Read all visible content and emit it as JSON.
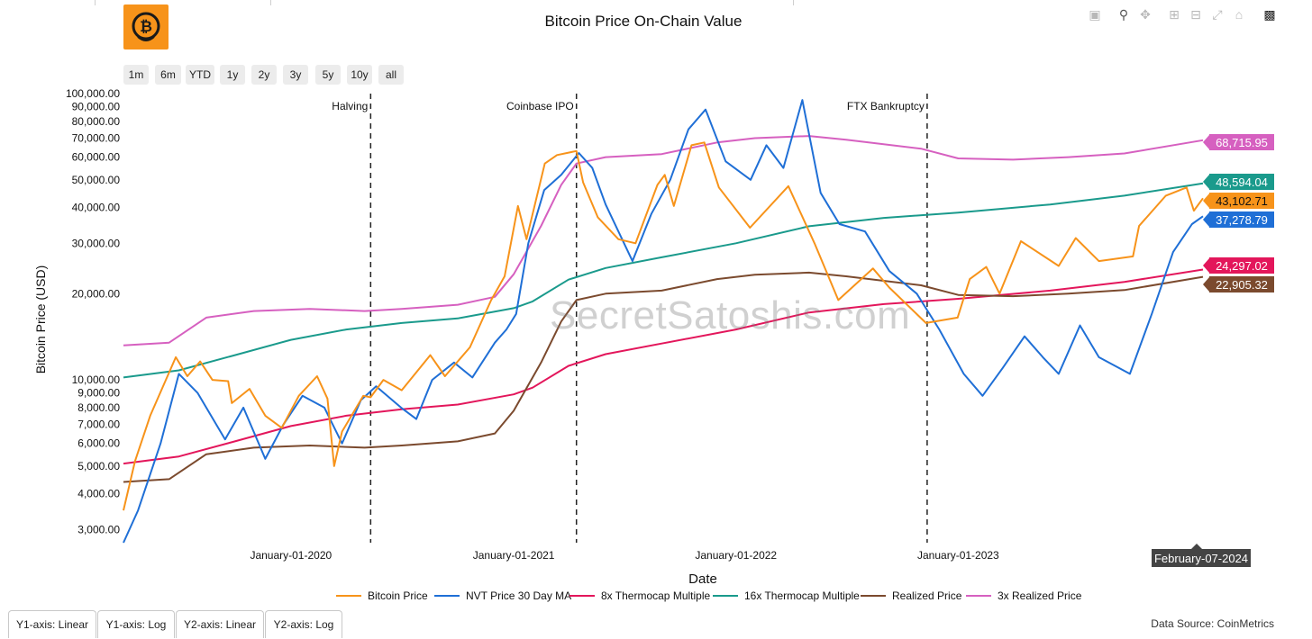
{
  "toolbar": {
    "range_buttons": [
      "1m",
      "6m",
      "YTD",
      "1y",
      "2y",
      "3y",
      "5y",
      "10y",
      "all"
    ],
    "modebar_icons": [
      "camera-icon",
      "zoom-icon",
      "pan-icon",
      "zoom-in-icon",
      "zoom-out-icon",
      "autoscale-icon",
      "home-icon",
      "plotly-logo-icon"
    ]
  },
  "bottom_buttons": [
    "Y1-axis: Linear",
    "Y1-axis: Log",
    "Y2-axis: Linear",
    "Y2-axis: Log"
  ],
  "watermark": "SecretSatoshis.com",
  "data_source": "Data Source: CoinMetrics",
  "logo_icon": "bitcoin-logo-icon",
  "hover_label": "February-07-2024",
  "chart_data": {
    "type": "line",
    "title": "Bitcoin Price On-Chain Value",
    "xlabel": "Date",
    "ylabel": "Bitcoin Price (USD)",
    "y_scale": "log",
    "x_range": [
      "2019-04-01",
      "2024-02-07"
    ],
    "ylim": [
      2700,
      100000
    ],
    "y_ticks": [
      {
        "value": 3000,
        "label": "3,000.00"
      },
      {
        "value": 4000,
        "label": "4,000.00"
      },
      {
        "value": 5000,
        "label": "5,000.00"
      },
      {
        "value": 6000,
        "label": "6,000.00"
      },
      {
        "value": 7000,
        "label": "7,000.00"
      },
      {
        "value": 8000,
        "label": "8,000.00"
      },
      {
        "value": 9000,
        "label": "9,000.00"
      },
      {
        "value": 10000,
        "label": "10,000.00"
      },
      {
        "value": 20000,
        "label": "20,000.00"
      },
      {
        "value": 30000,
        "label": "30,000.00"
      },
      {
        "value": 40000,
        "label": "40,000.00"
      },
      {
        "value": 50000,
        "label": "50,000.00"
      },
      {
        "value": 60000,
        "label": "60,000.00"
      },
      {
        "value": 70000,
        "label": "70,000.00"
      },
      {
        "value": 80000,
        "label": "80,000.00"
      },
      {
        "value": 90000,
        "label": "90,000.00"
      },
      {
        "value": 100000,
        "label": "100,000.00"
      }
    ],
    "x_ticks": [
      {
        "date": "2020-01-01",
        "label": "January-01-2020"
      },
      {
        "date": "2021-01-01",
        "label": "January-01-2021"
      },
      {
        "date": "2022-01-01",
        "label": "January-01-2022"
      },
      {
        "date": "2023-01-01",
        "label": "January-01-2023"
      },
      {
        "date": "2024-01-01",
        "label": "Ja"
      }
    ],
    "events": [
      {
        "date": "2020-05-11",
        "label": "Halving"
      },
      {
        "date": "2021-04-14",
        "label": "Coinbase IPO"
      },
      {
        "date": "2022-11-11",
        "label": "FTX Bankruptcy"
      }
    ],
    "legend_position": "bottom",
    "grid": false,
    "series": [
      {
        "name": "Bitcoin Price",
        "color": "#f7931a",
        "last_label": "43,102.71",
        "points": [
          [
            "2019-04-01",
            3500
          ],
          [
            "2019-04-20",
            5200
          ],
          [
            "2019-05-15",
            7500
          ],
          [
            "2019-06-26",
            12000
          ],
          [
            "2019-07-15",
            10300
          ],
          [
            "2019-08-05",
            11600
          ],
          [
            "2019-08-25",
            10000
          ],
          [
            "2019-09-20",
            9900
          ],
          [
            "2019-09-26",
            8300
          ],
          [
            "2019-10-25",
            9300
          ],
          [
            "2019-11-20",
            7500
          ],
          [
            "2019-12-17",
            6800
          ],
          [
            "2020-01-14",
            8800
          ],
          [
            "2020-02-13",
            10300
          ],
          [
            "2020-03-01",
            8600
          ],
          [
            "2020-03-12",
            5000
          ],
          [
            "2020-03-25",
            6600
          ],
          [
            "2020-04-29",
            8800
          ],
          [
            "2020-05-11",
            8700
          ],
          [
            "2020-06-01",
            10000
          ],
          [
            "2020-07-01",
            9200
          ],
          [
            "2020-08-17",
            12200
          ],
          [
            "2020-09-10",
            10300
          ],
          [
            "2020-10-21",
            13000
          ],
          [
            "2020-11-25",
            19000
          ],
          [
            "2020-12-17",
            23000
          ],
          [
            "2021-01-08",
            40500
          ],
          [
            "2021-01-22",
            31000
          ],
          [
            "2021-02-21",
            57000
          ],
          [
            "2021-03-13",
            61000
          ],
          [
            "2021-04-14",
            63000
          ],
          [
            "2021-04-25",
            49000
          ],
          [
            "2021-05-19",
            37000
          ],
          [
            "2021-06-22",
            31000
          ],
          [
            "2021-07-20",
            30000
          ],
          [
            "2021-08-25",
            48000
          ],
          [
            "2021-09-06",
            52000
          ],
          [
            "2021-09-21",
            40500
          ],
          [
            "2021-10-20",
            66000
          ],
          [
            "2021-11-10",
            67500
          ],
          [
            "2021-12-04",
            47000
          ],
          [
            "2022-01-24",
            34000
          ],
          [
            "2022-03-28",
            47500
          ],
          [
            "2022-05-10",
            30000
          ],
          [
            "2022-06-18",
            19000
          ],
          [
            "2022-08-14",
            24500
          ],
          [
            "2022-09-10",
            21000
          ],
          [
            "2022-11-09",
            15800
          ],
          [
            "2022-12-31",
            16500
          ],
          [
            "2023-01-20",
            22500
          ],
          [
            "2023-02-16",
            24800
          ],
          [
            "2023-03-10",
            20000
          ],
          [
            "2023-04-14",
            30500
          ],
          [
            "2023-06-15",
            25000
          ],
          [
            "2023-07-13",
            31300
          ],
          [
            "2023-08-20",
            26000
          ],
          [
            "2023-10-15",
            27000
          ],
          [
            "2023-10-25",
            34500
          ],
          [
            "2023-12-08",
            44000
          ],
          [
            "2024-01-11",
            47000
          ],
          [
            "2024-01-23",
            39000
          ],
          [
            "2024-02-07",
            43102.71
          ]
        ]
      },
      {
        "name": "NVT Price 30 Day MA",
        "color": "#1f6fd6",
        "last_label": "37,278.79",
        "points": [
          [
            "2019-04-01",
            2700
          ],
          [
            "2019-04-25",
            3500
          ],
          [
            "2019-06-01",
            6000
          ],
          [
            "2019-07-01",
            10500
          ],
          [
            "2019-08-01",
            9000
          ],
          [
            "2019-09-15",
            6200
          ],
          [
            "2019-10-15",
            8000
          ],
          [
            "2019-11-20",
            5300
          ],
          [
            "2019-12-20",
            7000
          ],
          [
            "2020-01-20",
            8800
          ],
          [
            "2020-02-25",
            8000
          ],
          [
            "2020-03-25",
            6000
          ],
          [
            "2020-04-25",
            8500
          ],
          [
            "2020-05-20",
            9500
          ],
          [
            "2020-06-30",
            8000
          ],
          [
            "2020-07-25",
            7300
          ],
          [
            "2020-08-20",
            10000
          ],
          [
            "2020-09-25",
            11500
          ],
          [
            "2020-10-25",
            10200
          ],
          [
            "2020-12-01",
            13500
          ],
          [
            "2020-12-20",
            15000
          ],
          [
            "2021-01-05",
            17000
          ],
          [
            "2021-01-25",
            30000
          ],
          [
            "2021-02-20",
            46000
          ],
          [
            "2021-03-20",
            52000
          ],
          [
            "2021-04-18",
            62000
          ],
          [
            "2021-05-10",
            55000
          ],
          [
            "2021-06-01",
            41000
          ],
          [
            "2021-07-15",
            26000
          ],
          [
            "2021-08-15",
            38000
          ],
          [
            "2021-09-15",
            50000
          ],
          [
            "2021-10-15",
            75000
          ],
          [
            "2021-11-12",
            88000
          ],
          [
            "2021-12-15",
            58000
          ],
          [
            "2022-01-25",
            50000
          ],
          [
            "2022-02-20",
            66000
          ],
          [
            "2022-03-20",
            55000
          ],
          [
            "2022-04-20",
            95000
          ],
          [
            "2022-05-20",
            45000
          ],
          [
            "2022-06-20",
            35000
          ],
          [
            "2022-08-01",
            33000
          ],
          [
            "2022-09-10",
            24000
          ],
          [
            "2022-10-25",
            20000
          ],
          [
            "2022-12-01",
            15000
          ],
          [
            "2023-01-10",
            10500
          ],
          [
            "2023-02-10",
            8800
          ],
          [
            "2023-03-15",
            11000
          ],
          [
            "2023-04-20",
            14200
          ],
          [
            "2023-05-20",
            12000
          ],
          [
            "2023-06-15",
            10500
          ],
          [
            "2023-07-20",
            15500
          ],
          [
            "2023-08-20",
            12000
          ],
          [
            "2023-10-10",
            10500
          ],
          [
            "2023-11-15",
            17000
          ],
          [
            "2023-12-20",
            28000
          ],
          [
            "2024-01-20",
            35000
          ],
          [
            "2024-02-07",
            37278.79
          ]
        ]
      },
      {
        "name": "8x Thermocap Multiple",
        "color": "#e3165b",
        "last_label": "24,297.02",
        "points": [
          [
            "2019-04-01",
            5100
          ],
          [
            "2019-07-01",
            5400
          ],
          [
            "2019-10-01",
            6100
          ],
          [
            "2020-01-01",
            6900
          ],
          [
            "2020-04-01",
            7500
          ],
          [
            "2020-07-01",
            7900
          ],
          [
            "2020-10-01",
            8200
          ],
          [
            "2021-01-01",
            8900
          ],
          [
            "2021-02-01",
            9400
          ],
          [
            "2021-04-01",
            11200
          ],
          [
            "2021-06-01",
            12300
          ],
          [
            "2021-09-01",
            13400
          ],
          [
            "2022-01-01",
            15000
          ],
          [
            "2022-05-01",
            17200
          ],
          [
            "2022-09-01",
            18400
          ],
          [
            "2023-01-01",
            19200
          ],
          [
            "2023-06-01",
            20500
          ],
          [
            "2023-10-01",
            22000
          ],
          [
            "2024-02-07",
            24297.02
          ]
        ]
      },
      {
        "name": "16x Thermocap Multiple",
        "color": "#1a9a8c",
        "last_label": "48,594.04",
        "points": [
          [
            "2019-04-01",
            10200
          ],
          [
            "2019-07-01",
            10800
          ],
          [
            "2019-10-01",
            12200
          ],
          [
            "2020-01-01",
            13800
          ],
          [
            "2020-04-01",
            15000
          ],
          [
            "2020-07-01",
            15800
          ],
          [
            "2020-10-01",
            16400
          ],
          [
            "2021-01-01",
            17800
          ],
          [
            "2021-02-01",
            18800
          ],
          [
            "2021-04-01",
            22400
          ],
          [
            "2021-06-01",
            24600
          ],
          [
            "2021-09-01",
            26800
          ],
          [
            "2022-01-01",
            30000
          ],
          [
            "2022-05-01",
            34400
          ],
          [
            "2022-09-01",
            36800
          ],
          [
            "2023-01-01",
            38400
          ],
          [
            "2023-06-01",
            41000
          ],
          [
            "2023-10-01",
            44000
          ],
          [
            "2024-02-07",
            48594.04
          ]
        ]
      },
      {
        "name": "Realized Price",
        "color": "#7b4a2e",
        "last_label": "22,905.32",
        "points": [
          [
            "2019-04-01",
            4400
          ],
          [
            "2019-06-15",
            4500
          ],
          [
            "2019-08-15",
            5500
          ],
          [
            "2019-11-01",
            5800
          ],
          [
            "2020-02-01",
            5900
          ],
          [
            "2020-05-01",
            5800
          ],
          [
            "2020-07-01",
            5900
          ],
          [
            "2020-10-01",
            6100
          ],
          [
            "2020-12-01",
            6500
          ],
          [
            "2021-01-01",
            7800
          ],
          [
            "2021-02-15",
            11500
          ],
          [
            "2021-03-20",
            16000
          ],
          [
            "2021-04-14",
            19000
          ],
          [
            "2021-06-01",
            20000
          ],
          [
            "2021-09-01",
            20500
          ],
          [
            "2021-12-01",
            22500
          ],
          [
            "2022-02-01",
            23300
          ],
          [
            "2022-05-01",
            23700
          ],
          [
            "2022-07-01",
            23000
          ],
          [
            "2022-11-01",
            21400
          ],
          [
            "2023-01-01",
            19800
          ],
          [
            "2023-04-01",
            19600
          ],
          [
            "2023-07-01",
            20000
          ],
          [
            "2023-10-01",
            20600
          ],
          [
            "2024-02-07",
            22905.32
          ]
        ]
      },
      {
        "name": "3x Realized Price",
        "color": "#d660c0",
        "last_label": "68,715.95",
        "points": [
          [
            "2019-04-01",
            13200
          ],
          [
            "2019-06-15",
            13500
          ],
          [
            "2019-08-15",
            16500
          ],
          [
            "2019-11-01",
            17400
          ],
          [
            "2020-02-01",
            17700
          ],
          [
            "2020-05-01",
            17400
          ],
          [
            "2020-07-01",
            17700
          ],
          [
            "2020-10-01",
            18300
          ],
          [
            "2020-12-01",
            19500
          ],
          [
            "2021-01-01",
            23400
          ],
          [
            "2021-02-15",
            34500
          ],
          [
            "2021-03-20",
            48000
          ],
          [
            "2021-04-14",
            57000
          ],
          [
            "2021-06-01",
            60000
          ],
          [
            "2021-09-01",
            61500
          ],
          [
            "2021-12-01",
            67500
          ],
          [
            "2022-02-01",
            69900
          ],
          [
            "2022-05-01",
            71100
          ],
          [
            "2022-07-01",
            69000
          ],
          [
            "2022-11-01",
            64200
          ],
          [
            "2023-01-01",
            59400
          ],
          [
            "2023-04-01",
            58800
          ],
          [
            "2023-07-01",
            60000
          ],
          [
            "2023-10-01",
            61800
          ],
          [
            "2024-02-07",
            68715.95
          ]
        ]
      }
    ]
  }
}
